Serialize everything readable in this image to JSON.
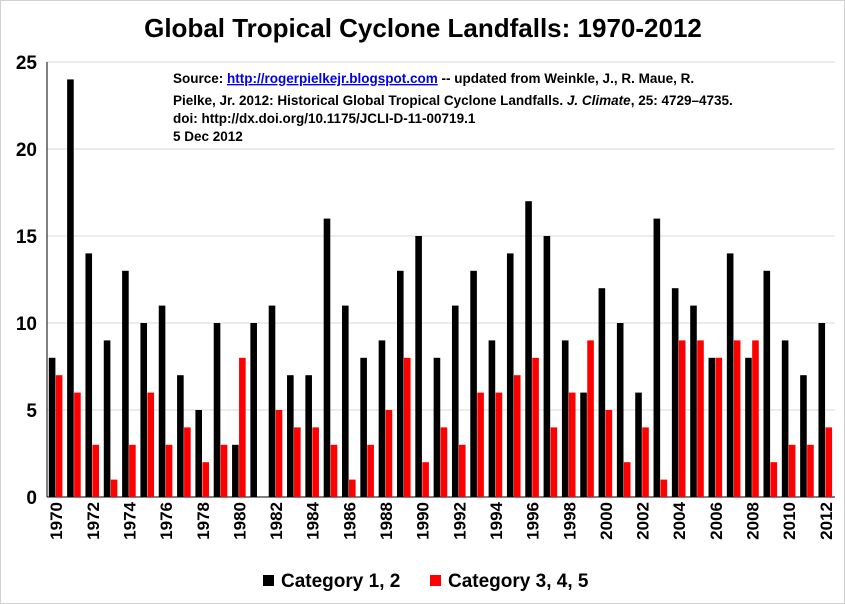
{
  "chart_data": {
    "type": "bar",
    "title": "Global Tropical Cyclone Landfalls: 1970-2012",
    "xlabel": "",
    "ylabel": "",
    "ylim": [
      0,
      25
    ],
    "yticks": [
      0,
      5,
      10,
      15,
      20,
      25
    ],
    "categories": [
      "1970",
      "1971",
      "1972",
      "1973",
      "1974",
      "1975",
      "1976",
      "1977",
      "1978",
      "1979",
      "1980",
      "1981",
      "1982",
      "1983",
      "1984",
      "1985",
      "1986",
      "1987",
      "1988",
      "1989",
      "1990",
      "1991",
      "1992",
      "1993",
      "1994",
      "1995",
      "1996",
      "1997",
      "1998",
      "1999",
      "2000",
      "2001",
      "2002",
      "2003",
      "2004",
      "2005",
      "2006",
      "2007",
      "2008",
      "2009",
      "2010",
      "2011",
      "2012"
    ],
    "tick_labels": [
      "1970",
      "1972",
      "1974",
      "1976",
      "1978",
      "1980",
      "1982",
      "1984",
      "1986",
      "1988",
      "1990",
      "1992",
      "1994",
      "1996",
      "1998",
      "2000",
      "2002",
      "2004",
      "2006",
      "2008",
      "2010",
      "2012"
    ],
    "series": [
      {
        "name": "Category 1, 2",
        "color": "#000000",
        "values": [
          8,
          24,
          14,
          9,
          13,
          10,
          11,
          7,
          5,
          10,
          3,
          10,
          11,
          7,
          7,
          16,
          11,
          8,
          9,
          13,
          15,
          8,
          11,
          13,
          9,
          14,
          17,
          15,
          9,
          6,
          12,
          10,
          6,
          16,
          12,
          11,
          8,
          14,
          8,
          13,
          9,
          7,
          10
        ]
      },
      {
        "name": "Category 3, 4, 5",
        "color": "#ff0000",
        "values": [
          7,
          6,
          3,
          1,
          3,
          6,
          3,
          4,
          2,
          3,
          8,
          0,
          5,
          4,
          4,
          3,
          1,
          3,
          5,
          8,
          2,
          4,
          3,
          6,
          6,
          7,
          8,
          4,
          6,
          9,
          5,
          2,
          4,
          1,
          9,
          9,
          8,
          9,
          9,
          2,
          3,
          3,
          4
        ]
      }
    ],
    "legend_position": "bottom-center",
    "grid": true
  },
  "source_note": {
    "prefix": "Source: ",
    "link": "http://rogerpielkejr.blogspot.com",
    "line1_rest": " -- updated from Weinkle, J., R. Maue, R.",
    "line2_a": "Pielke, Jr. 2012: Historical Global Tropical Cyclone Landfalls. ",
    "line2_journal": "J. Climate",
    "line2_b": ", 25: 4729–4735.",
    "line3": "doi: http://dx.doi.org/10.1175/JCLI-D-11-00719.1",
    "line4": "5 Dec 2012"
  }
}
